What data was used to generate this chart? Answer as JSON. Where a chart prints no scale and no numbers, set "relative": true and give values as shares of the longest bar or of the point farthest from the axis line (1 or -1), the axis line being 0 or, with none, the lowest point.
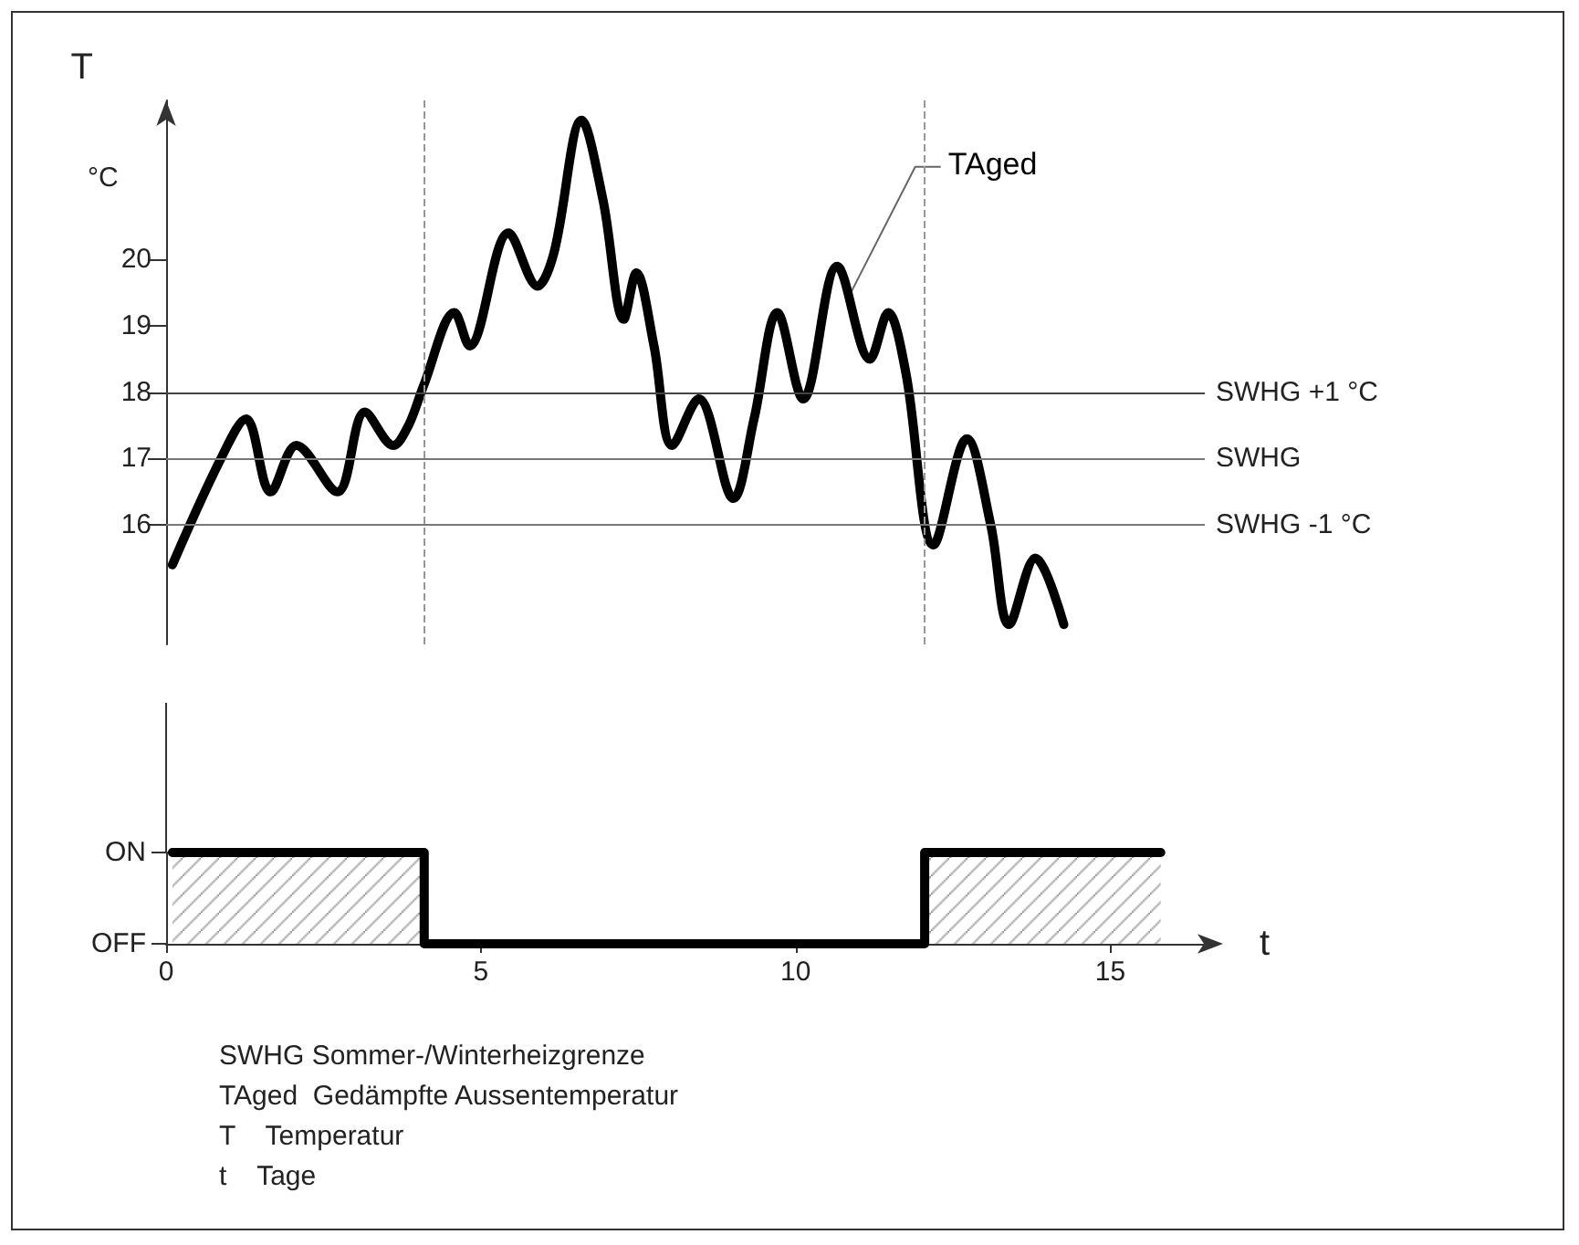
{
  "chart_data": [
    {
      "type": "line",
      "ylabel": "T",
      "annotations": [
        "°C"
      ],
      "series": [
        {
          "name": "TAged",
          "color": "#000000",
          "x": [
            0.1,
            0.87,
            1.27,
            1.66,
            2.07,
            2.72,
            3.16,
            3.61,
            3.85,
            4.09,
            4.58,
            4.82,
            5.44,
            5.9,
            6.16,
            6.6,
            6.94,
            7.27,
            7.47,
            7.75,
            8.04,
            8.46,
            9.01,
            9.34,
            9.71,
            10.12,
            10.66,
            11.18,
            11.47,
            11.75,
            12.19,
            12.72,
            13.1,
            13.39,
            13.81,
            14.26
          ],
          "values": [
            15.4,
            17.0,
            17.6,
            16.5,
            17.2,
            16.5,
            17.7,
            17.2,
            17.5,
            18.1,
            19.2,
            18.7,
            20.4,
            19.6,
            20.1,
            22.1,
            20.9,
            19.1,
            19.8,
            18.7,
            17.2,
            17.9,
            16.4,
            17.6,
            19.2,
            17.9,
            19.9,
            18.5,
            19.2,
            18.3,
            15.7,
            17.3,
            16.0,
            14.5,
            15.5,
            14.5
          ]
        }
      ],
      "xlim": [
        0,
        16.5
      ],
      "ylim": [
        14.2,
        22.4
      ],
      "yticks": [
        16,
        17,
        18,
        19,
        20
      ],
      "tick_labels": "y",
      "ref_lines": [
        {
          "axis": "y",
          "value": 18,
          "label": "SWHG +1 °C",
          "color": "#444444",
          "line_style": "solid"
        },
        {
          "axis": "y",
          "value": 17,
          "label": "SWHG",
          "color": "#777777",
          "line_style": "solid"
        },
        {
          "axis": "y",
          "value": 16,
          "label": "SWHG -1 °C",
          "color": "#777777",
          "line_style": "solid"
        },
        {
          "axis": "x",
          "value": 4.1,
          "color": "#999999",
          "line_style": "dashed"
        },
        {
          "axis": "x",
          "value": 12.05,
          "color": "#999999",
          "line_style": "dashed"
        }
      ],
      "grid": false,
      "legend": false,
      "marker": "none",
      "line_style": "solid"
    },
    {
      "type": "area",
      "xlabel": "t",
      "annotations": [
        "ON",
        "OFF",
        "SWHG Sommer-/Winterheizgrenze",
        "TAged  Gedämpfte Aussentemperatur",
        "T    Temperatur",
        "t    Tage"
      ],
      "x": [
        0.1,
        4.1,
        4.1,
        12.05,
        12.05,
        15.8
      ],
      "values": [
        1,
        1,
        0,
        0,
        1,
        1
      ],
      "color": "#000000",
      "xlim": [
        0,
        16.5
      ],
      "xticks": [
        0,
        5,
        10,
        15
      ],
      "relative": true,
      "grid": false,
      "legend": false,
      "marker": "none",
      "line_style": "solid"
    }
  ]
}
